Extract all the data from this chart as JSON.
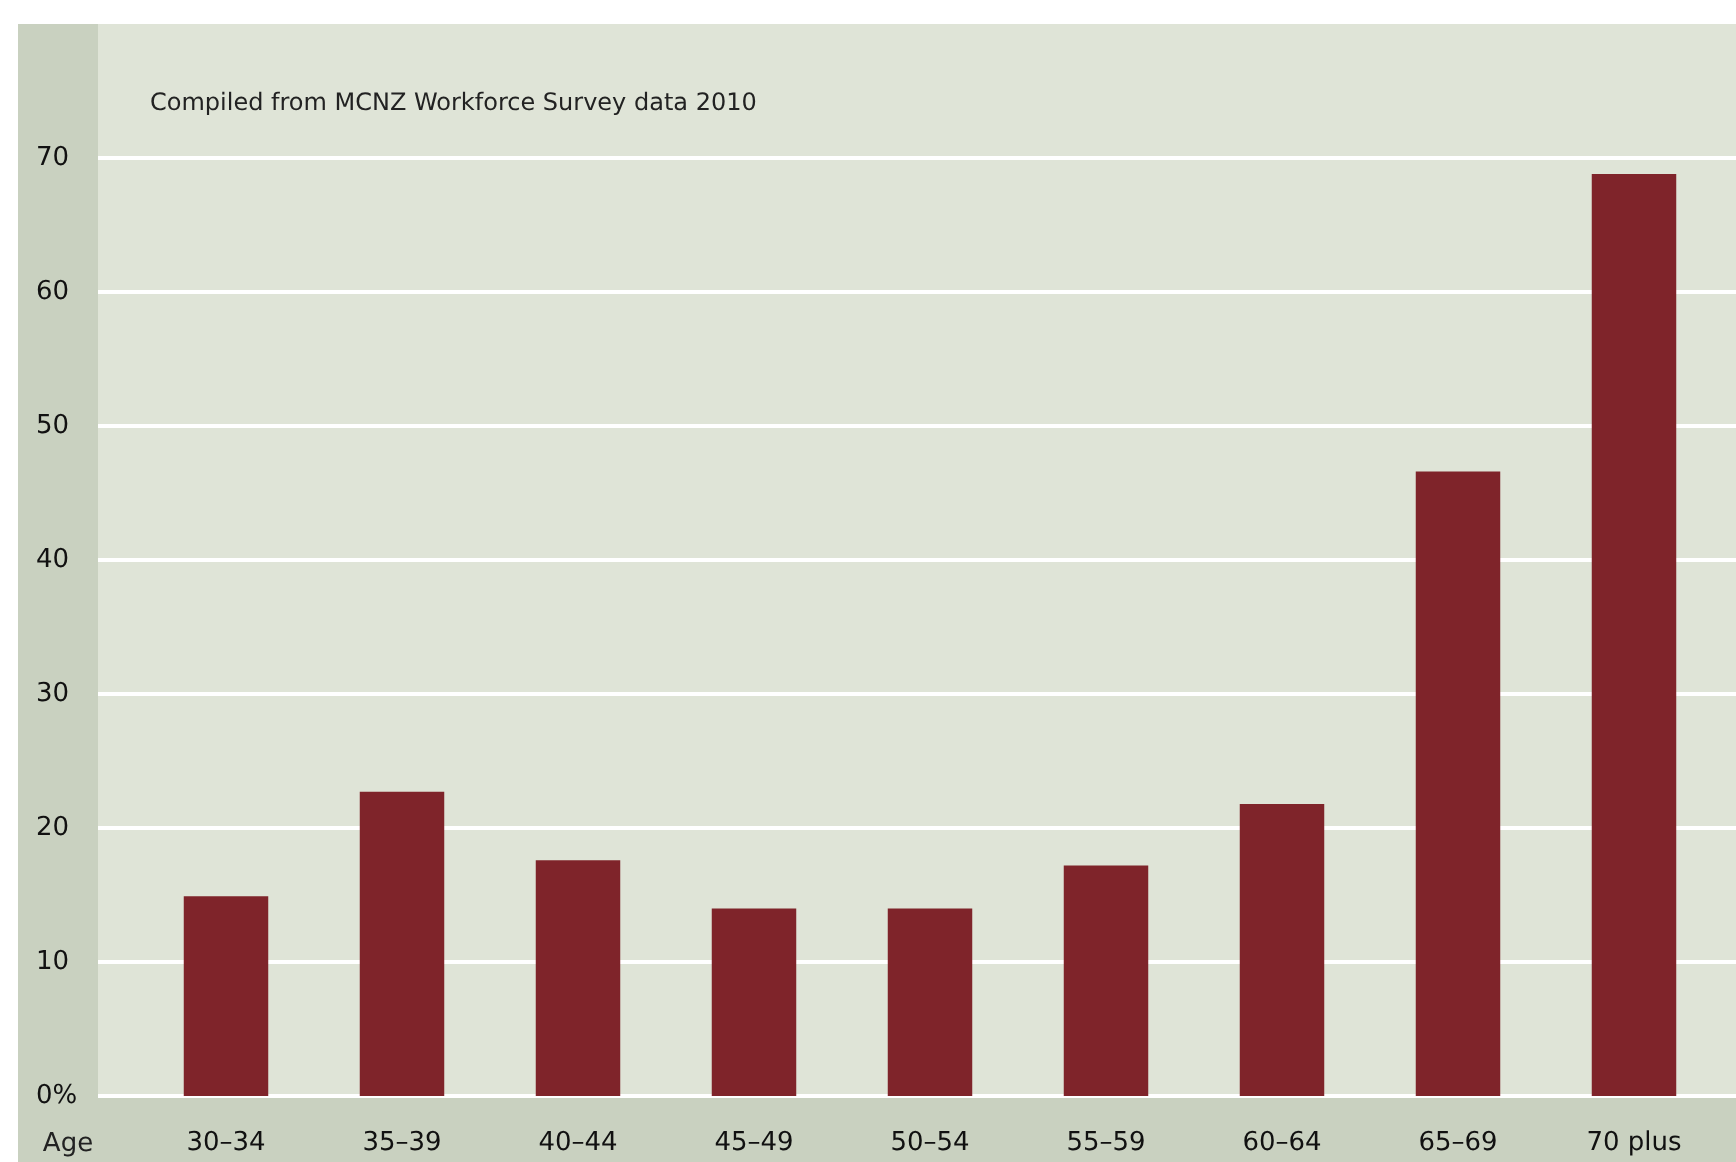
{
  "chart_data": {
    "type": "bar",
    "xlabel": "Age",
    "categories": [
      "30–34",
      "35–39",
      "40–44",
      "45–49",
      "50–54",
      "55–59",
      "60–64",
      "65–69",
      "70 plus"
    ],
    "values": [
      14.9,
      22.7,
      17.6,
      14.0,
      14.0,
      17.2,
      21.8,
      46.6,
      68.8
    ],
    "color": "#7f242a",
    "ylim": [
      0,
      80
    ],
    "yticks": [
      {
        "value": 0,
        "label": "0%"
      },
      10,
      20,
      30,
      40,
      50,
      60,
      70
    ],
    "grid": "y",
    "annotations": [
      "Compiled from MCNZ Workforce Survey data 2010"
    ]
  }
}
